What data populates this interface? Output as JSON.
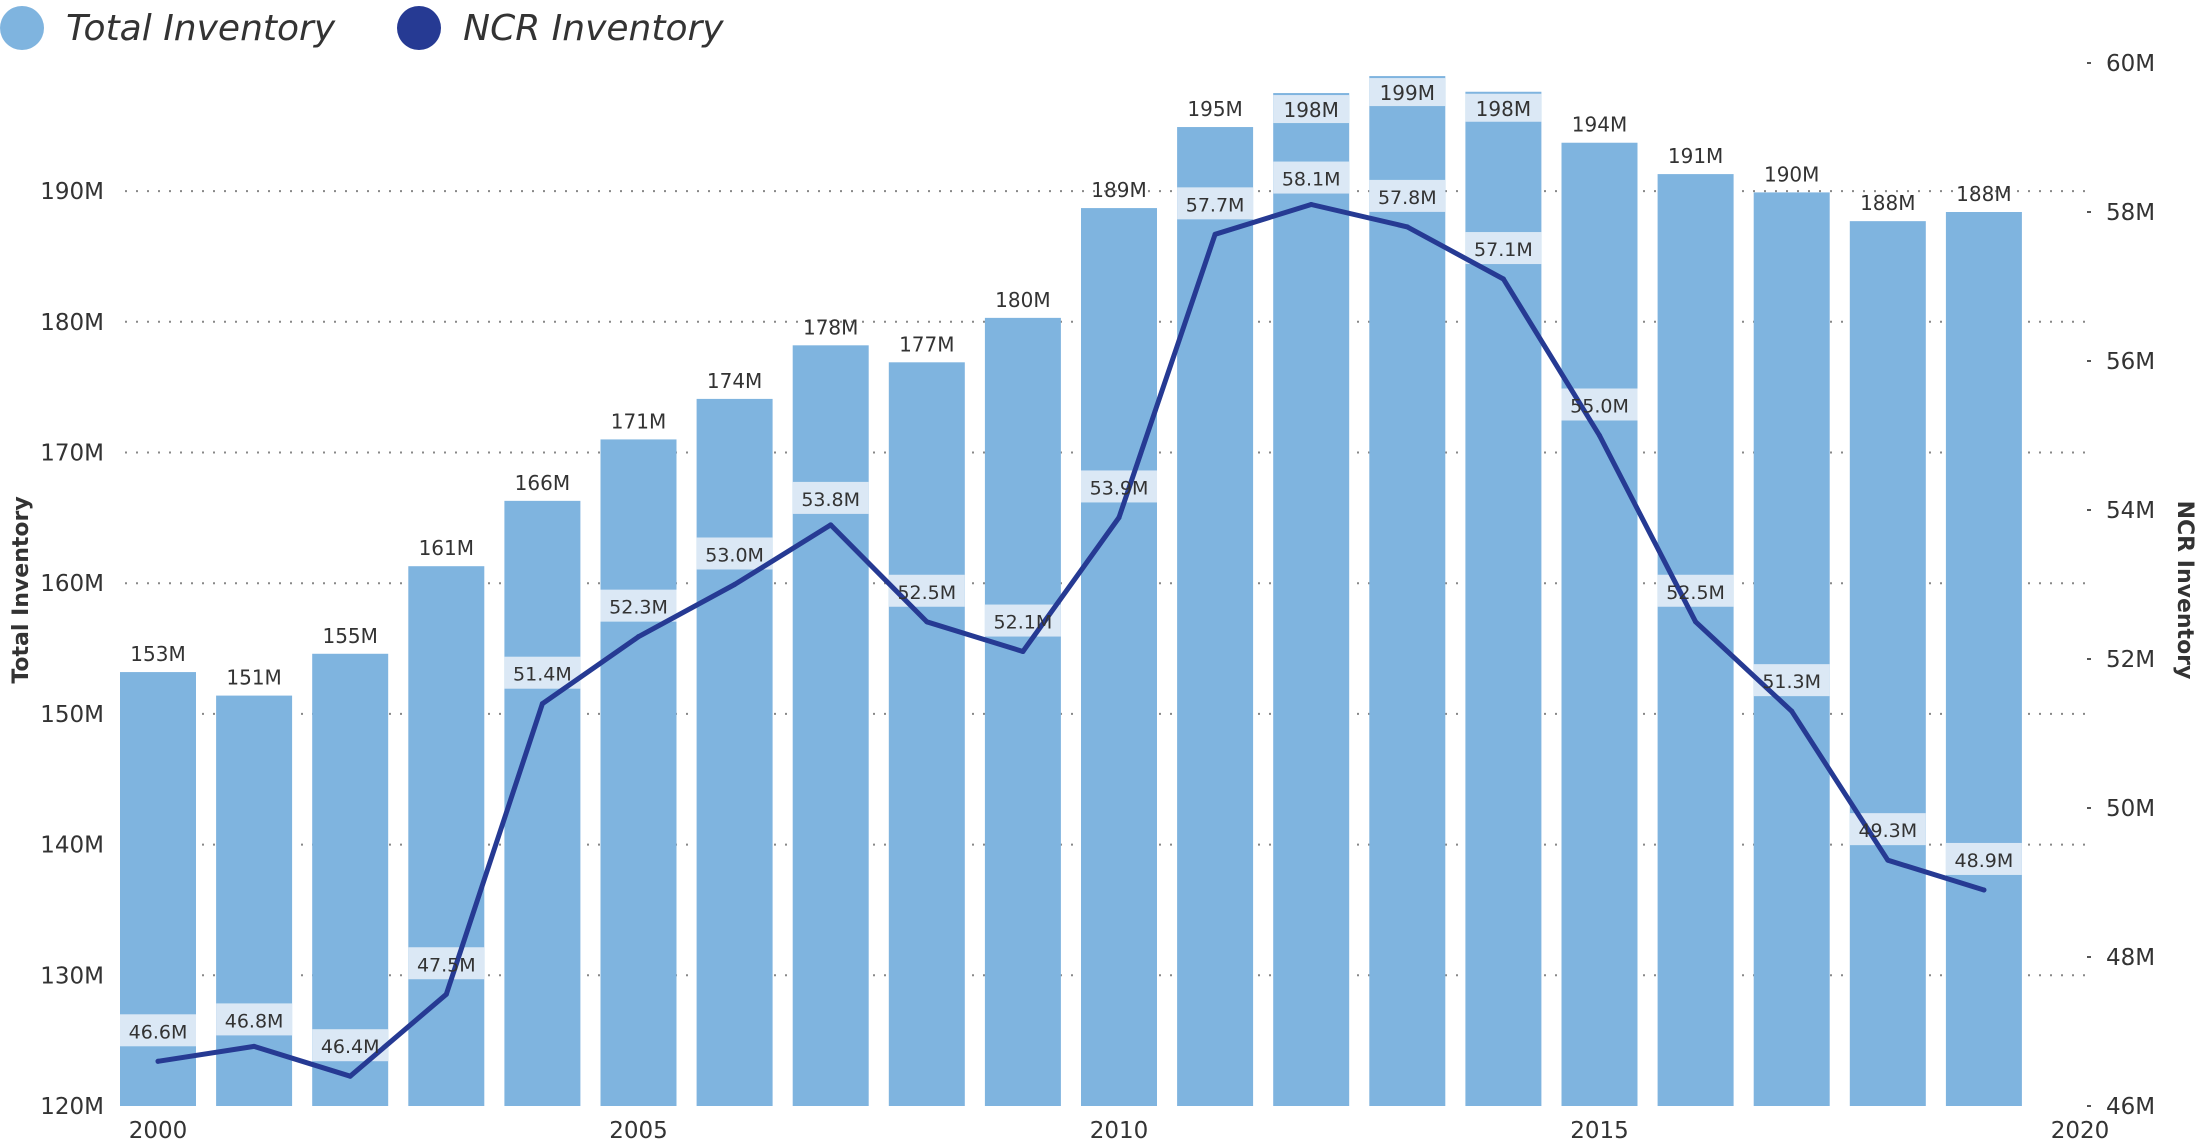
{
  "colors": {
    "bar": "#7fb4df",
    "line": "#263a93",
    "label_bg": "#dbe8f5",
    "grid": "#888888",
    "text": "#333333"
  },
  "chart_data": {
    "type": "bar",
    "title": "",
    "x": [
      2000,
      2001,
      2002,
      2003,
      2004,
      2005,
      2006,
      2007,
      2008,
      2009,
      2010,
      2011,
      2012,
      2013,
      2014,
      2015,
      2016,
      2017,
      2018,
      2019
    ],
    "series": [
      {
        "name": "Total Inventory",
        "type": "bar",
        "axis": "left",
        "values": [
          153.2,
          151.4,
          154.6,
          161.3,
          166.3,
          171.0,
          174.1,
          178.2,
          176.9,
          180.3,
          188.7,
          194.9,
          197.5,
          198.8,
          197.6,
          193.7,
          191.3,
          189.9,
          187.7,
          188.4
        ],
        "labels": [
          "153M",
          "151M",
          "155M",
          "161M",
          "166M",
          "171M",
          "174M",
          "178M",
          "177M",
          "180M",
          "189M",
          "195M",
          "198M",
          "199M",
          "198M",
          "194M",
          "191M",
          "190M",
          "188M",
          "188M"
        ]
      },
      {
        "name": "NCR Inventory",
        "type": "line",
        "axis": "right",
        "values": [
          46.6,
          46.8,
          46.4,
          47.5,
          51.4,
          52.3,
          53.0,
          53.8,
          52.5,
          52.1,
          53.9,
          57.7,
          58.1,
          57.8,
          57.1,
          55.0,
          52.5,
          51.3,
          49.3,
          48.9
        ],
        "labels": [
          "46.6M",
          "46.8M",
          "46.4M",
          "47.5M",
          "51.4M",
          "52.3M",
          "53.0M",
          "53.8M",
          "52.5M",
          "52.1M",
          "53.9M",
          "57.7M",
          "58.1M",
          "57.8M",
          "57.1M",
          "55.0M",
          "52.5M",
          "51.3M",
          "49.3M",
          "48.9M"
        ]
      }
    ],
    "x_axis": {
      "range": [
        2000,
        2020
      ],
      "ticks": [
        2000,
        2005,
        2010,
        2015,
        2020
      ],
      "tick_labels": [
        "2000",
        "2005",
        "2010",
        "2015",
        "2020"
      ]
    },
    "y_axis_left": {
      "label": "Total Inventory",
      "range": [
        120,
        199.8
      ],
      "ticks": [
        120,
        130,
        140,
        150,
        160,
        170,
        180,
        190
      ],
      "tick_labels": [
        "120M",
        "130M",
        "140M",
        "150M",
        "160M",
        "170M",
        "180M",
        "190M"
      ]
    },
    "y_axis_right": {
      "label": "NCR Inventory",
      "range": [
        46,
        60
      ],
      "ticks": [
        46,
        48,
        50,
        52,
        54,
        56,
        58,
        60
      ],
      "tick_labels": [
        "46M",
        "48M",
        "50M",
        "52M",
        "54M",
        "56M",
        "58M",
        "60M"
      ]
    },
    "grid": true,
    "grid_style": "dotted",
    "legend_position": "top-left"
  }
}
